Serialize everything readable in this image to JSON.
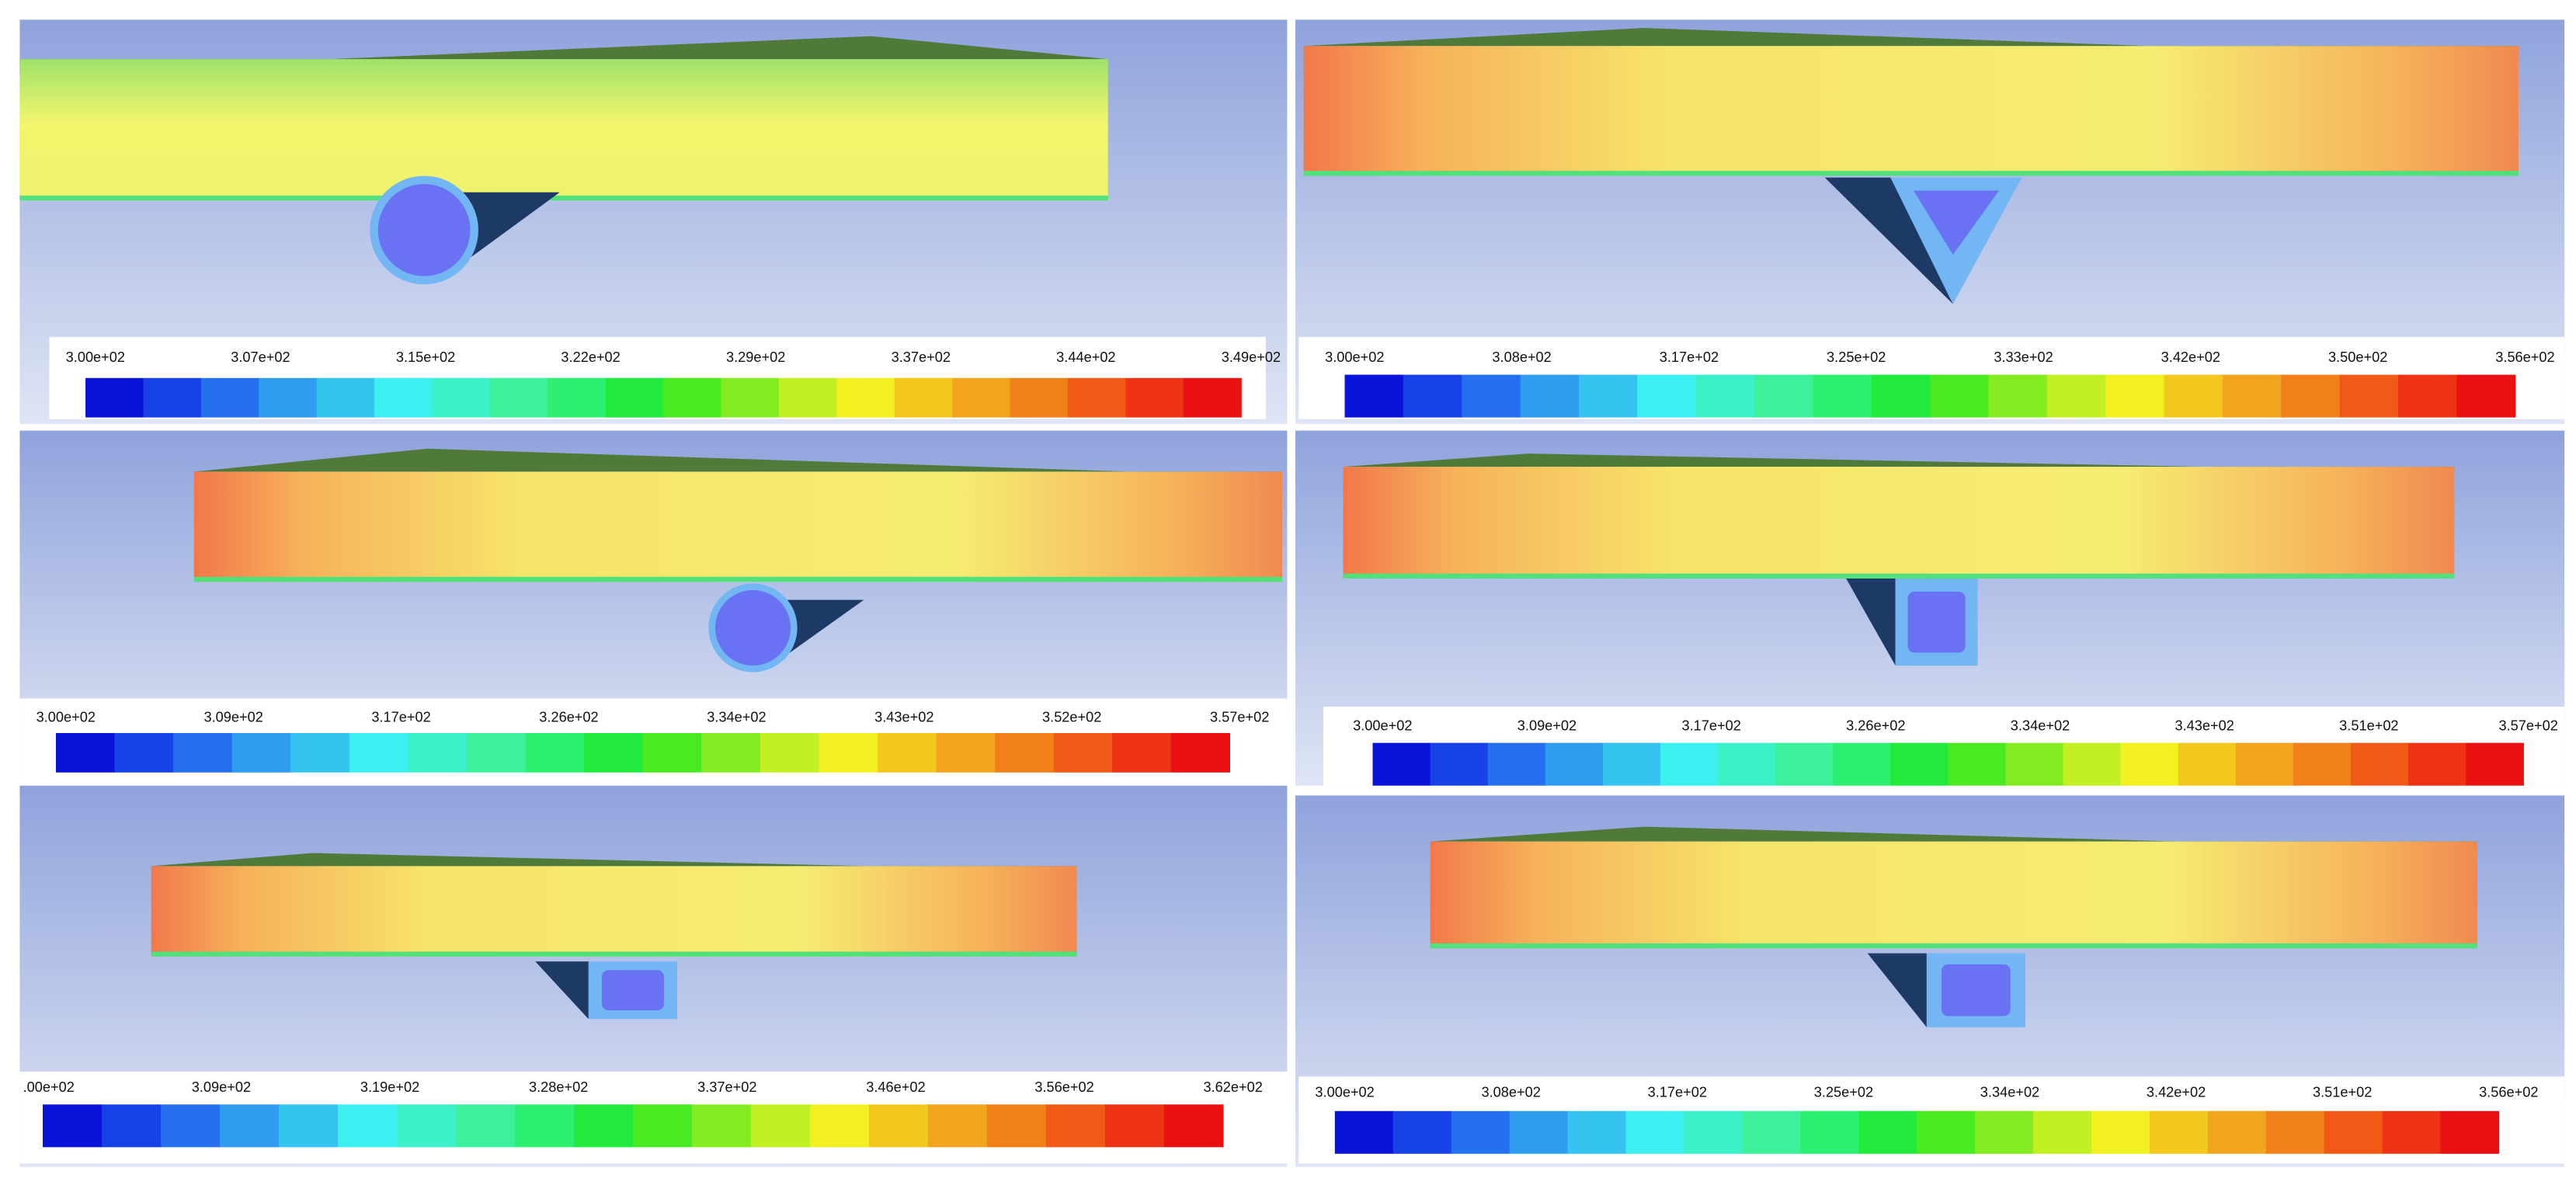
{
  "panels": [
    {
      "colorbar_labels": [
        "3.00e+02",
        "3.07e+02",
        "3.15e+02",
        "3.22e+02",
        "3.29e+02",
        "3.37e+02",
        "3.44e+02",
        "3.49e+02"
      ]
    },
    {
      "colorbar_labels": [
        "3.00e+02",
        "3.08e+02",
        "3.17e+02",
        "3.25e+02",
        "3.33e+02",
        "3.42e+02",
        "3.50e+02",
        "3.56e+02"
      ]
    },
    {
      "colorbar_labels": [
        "3.00e+02",
        "3.09e+02",
        "3.17e+02",
        "3.26e+02",
        "3.34e+02",
        "3.43e+02",
        "3.52e+02",
        "3.57e+02"
      ]
    },
    {
      "colorbar_labels": [
        "3.00e+02",
        "3.09e+02",
        "3.17e+02",
        "3.26e+02",
        "3.34e+02",
        "3.43e+02",
        "3.51e+02",
        "3.57e+02"
      ]
    },
    {
      "colorbar_labels": [
        ".00e+02",
        "3.09e+02",
        "3.19e+02",
        "3.28e+02",
        "3.37e+02",
        "3.46e+02",
        "3.56e+02",
        "3.62e+02"
      ]
    },
    {
      "colorbar_labels": [
        "3.00e+02",
        "3.08e+02",
        "3.17e+02",
        "3.25e+02",
        "3.34e+02",
        "3.42e+02",
        "3.51e+02",
        "3.56e+02"
      ]
    }
  ]
}
